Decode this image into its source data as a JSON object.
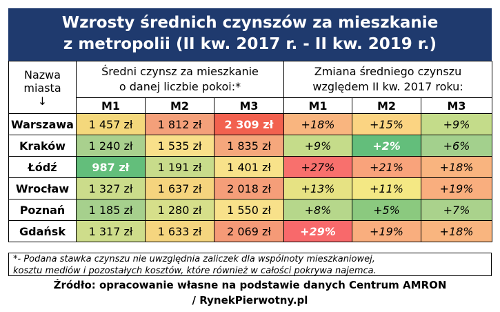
{
  "title": {
    "line1": "Wzrosty średnich czynszów za mieszkanie",
    "line2": "z metropolii (II kw. 2017 r. - II kw. 2019 r.)"
  },
  "headers": {
    "city_line1": "Nazwa",
    "city_line2": "miasta",
    "city_arrow": "↓",
    "rent_line1": "Średni czynsz za mieszkanie",
    "rent_line2": "o danej liczbie pokoi:*",
    "change_line1": "Zmiana średniego czynszu",
    "change_line2": "względem II kw. 2017 roku:",
    "sub": [
      "M1",
      "M2",
      "M3",
      "M1",
      "M2",
      "M3"
    ]
  },
  "chart_data": {
    "type": "table",
    "columns": [
      "M1",
      "M2",
      "M3",
      "M1",
      "M2",
      "M3"
    ],
    "rows": [
      {
        "city": "Warszawa",
        "rent": [
          "1 457 zł",
          "1 812 zł",
          "2 309 zł"
        ],
        "change": [
          "+18%",
          "+15%",
          "+9%"
        ]
      },
      {
        "city": "Kraków",
        "rent": [
          "1 240 zł",
          "1 535 zł",
          "1 835 zł"
        ],
        "change": [
          "+9%",
          "+2%",
          "+6%"
        ]
      },
      {
        "city": "Łódź",
        "rent": [
          "987 zł",
          "1 191 zł",
          "1 401 zł"
        ],
        "change": [
          "+27%",
          "+21%",
          "+18%"
        ]
      },
      {
        "city": "Wrocław",
        "rent": [
          "1 327 zł",
          "1 637 zł",
          "2 018 zł"
        ],
        "change": [
          "+13%",
          "+11%",
          "+19%"
        ]
      },
      {
        "city": "Poznań",
        "rent": [
          "1 185 zł",
          "1 280 zł",
          "1 550 zł"
        ],
        "change": [
          "+8%",
          "+5%",
          "+7%"
        ]
      },
      {
        "city": "Gdańsk",
        "rent": [
          "1 317 zł",
          "1 633 zł",
          "2 069 zł"
        ],
        "change": [
          "+29%",
          "+19%",
          "+18%"
        ]
      }
    ]
  },
  "colors": {
    "title_bg": "#1f3a6e",
    "rent": [
      [
        "#f4d87c",
        "#f4a07a",
        "#f2614f"
      ],
      [
        "#a9d08e",
        "#f9e08a",
        "#f5a77c"
      ],
      [
        "#63be7b",
        "#c8dc8b",
        "#f8e28a"
      ],
      [
        "#cbdc8b",
        "#f5d47e",
        "#f59e79"
      ],
      [
        "#a6d08d",
        "#d6df8a",
        "#f8e18a"
      ],
      [
        "#cedd8b",
        "#f5d57f",
        "#f59a77"
      ]
    ],
    "change": [
      [
        "#f9b57f",
        "#fbd482",
        "#c4dc8a"
      ],
      [
        "#c5dc8a",
        "#63be7b",
        "#a3d08d"
      ],
      [
        "#f8706d",
        "#f9a37b",
        "#f9b47f"
      ],
      [
        "#e6e283",
        "#f4e884",
        "#f9ae7e"
      ],
      [
        "#b6d78b",
        "#8bc97f",
        "#aad28c"
      ],
      [
        "#f8696b",
        "#f9ae7e",
        "#f9b57f"
      ]
    ]
  },
  "note": {
    "line1": "*- Podana stawka czynszu nie uwzględnia zaliczek dla wspólnoty mieszkaniowej,",
    "line2": "kosztu mediów i pozostałych kosztów, które również w całości pokrywa najemca."
  },
  "source": {
    "line1": "Źródło: opracowanie własne na podstawie danych Centrum AMRON",
    "line2": "/ RynekPierwotny.pl"
  }
}
